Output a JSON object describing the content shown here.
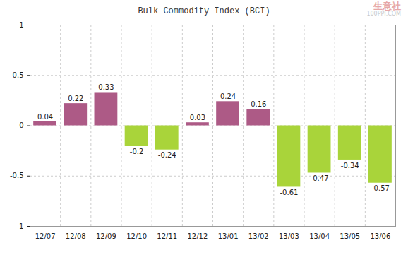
{
  "chart_data": {
    "type": "bar",
    "title": "Bulk Commodity Index (BCI)",
    "annotations": [
      "生意社",
      "100PPI.COM"
    ],
    "categories": [
      "12/07",
      "12/08",
      "12/09",
      "12/10",
      "12/11",
      "12/12",
      "13/01",
      "13/02",
      "13/03",
      "13/04",
      "13/05",
      "13/06"
    ],
    "values": [
      0.04,
      0.22,
      0.33,
      -0.2,
      -0.24,
      0.03,
      0.24,
      0.16,
      -0.61,
      -0.47,
      -0.34,
      -0.57
    ],
    "colors": [
      "#ad5a86",
      "#ad5a86",
      "#ad5a86",
      "#a9d43a",
      "#a9d43a",
      "#ad5a86",
      "#ad5a86",
      "#ad5a86",
      "#a9d43a",
      "#a9d43a",
      "#a9d43a",
      "#a9d43a"
    ],
    "ylim": [
      -1,
      1
    ],
    "yticks": [
      -1,
      -0.5,
      0,
      0.5,
      1
    ],
    "grid": true,
    "data_labels": true
  }
}
